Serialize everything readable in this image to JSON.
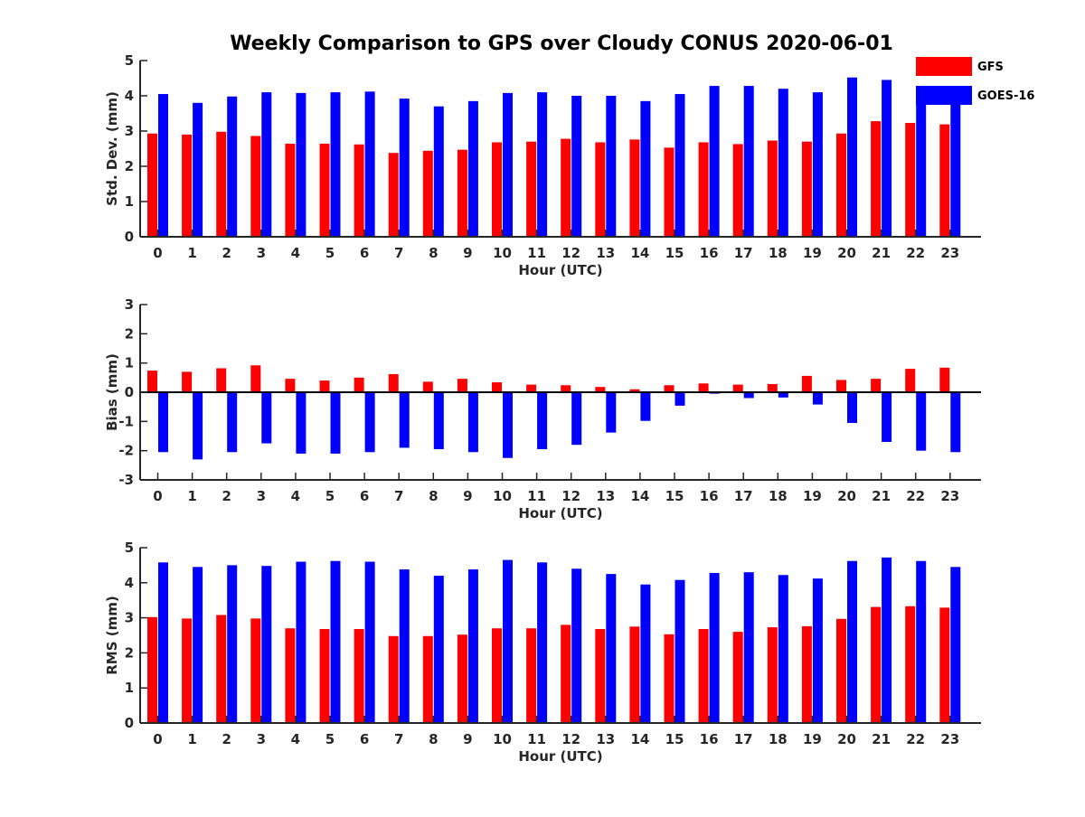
{
  "title": "Weekly Comparison to GPS over Cloudy CONUS 2020-06-01",
  "legend": [
    {
      "name": "GFS",
      "color": "#ff0000"
    },
    {
      "name": "GOES-16",
      "color": "#0000ff"
    }
  ],
  "chart_data": [
    {
      "type": "bar",
      "categories": [
        "0",
        "1",
        "2",
        "3",
        "4",
        "5",
        "6",
        "7",
        "8",
        "9",
        "10",
        "11",
        "12",
        "13",
        "14",
        "15",
        "16",
        "17",
        "18",
        "19",
        "20",
        "21",
        "22",
        "23"
      ],
      "series": [
        {
          "name": "GFS",
          "values": [
            2.93,
            2.9,
            2.98,
            2.86,
            2.64,
            2.64,
            2.62,
            2.38,
            2.44,
            2.47,
            2.68,
            2.7,
            2.78,
            2.68,
            2.76,
            2.53,
            2.68,
            2.63,
            2.73,
            2.7,
            2.93,
            3.28,
            3.23,
            3.19
          ]
        },
        {
          "name": "GOES-16",
          "values": [
            4.05,
            3.8,
            3.98,
            4.1,
            4.08,
            4.1,
            4.12,
            3.92,
            3.7,
            3.85,
            4.08,
            4.1,
            4.0,
            4.0,
            3.85,
            4.05,
            4.28,
            4.28,
            4.2,
            4.1,
            4.52,
            4.45,
            4.15,
            3.8
          ]
        }
      ],
      "xlabel": "Hour (UTC)",
      "ylabel": "Std. Dev. (mm)",
      "ylim": [
        0,
        5
      ],
      "yticks": [
        0,
        1,
        2,
        3,
        4,
        5
      ],
      "grid": false
    },
    {
      "type": "bar",
      "categories": [
        "0",
        "1",
        "2",
        "3",
        "4",
        "5",
        "6",
        "7",
        "8",
        "9",
        "10",
        "11",
        "12",
        "13",
        "14",
        "15",
        "16",
        "17",
        "18",
        "19",
        "20",
        "21",
        "22",
        "23"
      ],
      "series": [
        {
          "name": "GFS",
          "values": [
            0.74,
            0.7,
            0.82,
            0.92,
            0.46,
            0.4,
            0.5,
            0.62,
            0.36,
            0.46,
            0.34,
            0.26,
            0.24,
            0.18,
            0.1,
            0.24,
            0.3,
            0.26,
            0.28,
            0.56,
            0.42,
            0.46,
            0.8,
            0.84
          ]
        },
        {
          "name": "GOES-16",
          "values": [
            -2.05,
            -2.3,
            -2.05,
            -1.75,
            -2.1,
            -2.1,
            -2.05,
            -1.9,
            -1.95,
            -2.05,
            -2.25,
            -1.95,
            -1.8,
            -1.38,
            -0.98,
            -0.46,
            -0.05,
            -0.2,
            -0.18,
            -0.42,
            -1.05,
            -1.7,
            -2.0,
            -2.05
          ]
        }
      ],
      "xlabel": "Hour (UTC)",
      "ylabel": "Bias (mm)",
      "ylim": [
        -3,
        3
      ],
      "yticks": [
        -3,
        -2,
        -1,
        0,
        1,
        2,
        3
      ],
      "zero_line": true,
      "grid": false
    },
    {
      "type": "bar",
      "categories": [
        "0",
        "1",
        "2",
        "3",
        "4",
        "5",
        "6",
        "7",
        "8",
        "9",
        "10",
        "11",
        "12",
        "13",
        "14",
        "15",
        "16",
        "17",
        "18",
        "19",
        "20",
        "21",
        "22",
        "23"
      ],
      "series": [
        {
          "name": "GFS",
          "values": [
            3.02,
            2.98,
            3.08,
            2.98,
            2.7,
            2.68,
            2.68,
            2.48,
            2.48,
            2.52,
            2.7,
            2.7,
            2.8,
            2.68,
            2.75,
            2.53,
            2.68,
            2.6,
            2.73,
            2.76,
            2.97,
            3.31,
            3.33,
            3.29
          ]
        },
        {
          "name": "GOES-16",
          "values": [
            4.58,
            4.45,
            4.5,
            4.48,
            4.6,
            4.62,
            4.6,
            4.38,
            4.2,
            4.38,
            4.65,
            4.58,
            4.4,
            4.25,
            3.95,
            4.08,
            4.28,
            4.3,
            4.22,
            4.12,
            4.62,
            4.72,
            4.62,
            4.45
          ]
        }
      ],
      "xlabel": "Hour (UTC)",
      "ylabel": "RMS (mm)",
      "ylim": [
        0,
        5
      ],
      "yticks": [
        0,
        1,
        2,
        3,
        4,
        5
      ],
      "grid": false
    }
  ]
}
